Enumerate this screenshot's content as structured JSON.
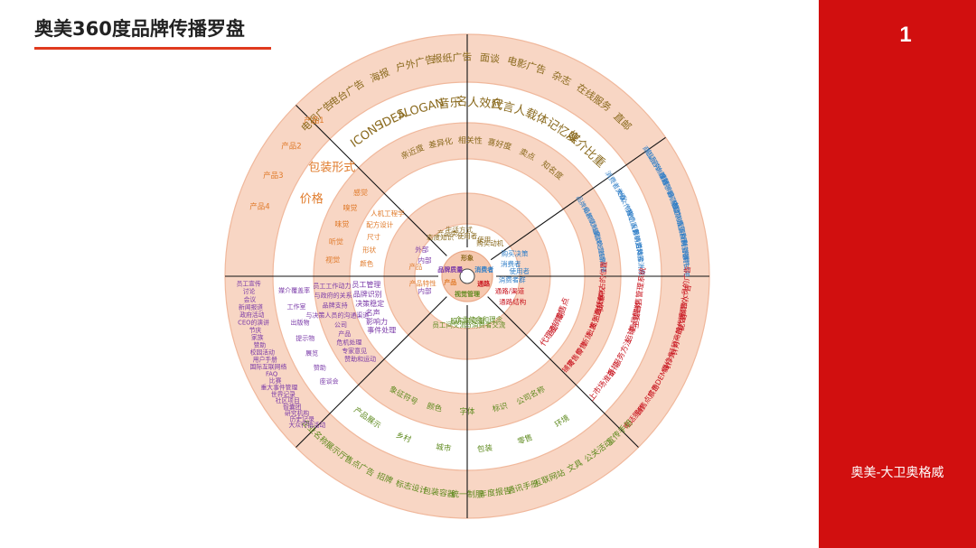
{
  "slide": {
    "title": "奥美360度品牌传播罗盘",
    "page_number": "1",
    "footer": "奥美-大卫奥格威"
  },
  "colors": {
    "peach": "#f7d4c2",
    "accent_red": "#e03a1e",
    "brown": "#8a6a1e",
    "blue": "#2f7ec7",
    "purple": "#7a3aa8",
    "red": "#c8141e",
    "orange": "#e07a2a",
    "green": "#5e8a1e",
    "panel": "#d10f0f"
  },
  "compass": {
    "hub": [
      {
        "text": "形象",
        "color": "brown"
      },
      {
        "text": "消费者",
        "color": "blue"
      },
      {
        "text": "通路",
        "color": "red"
      },
      {
        "text": "视觉管理",
        "color": "green"
      },
      {
        "text": "产品",
        "color": "orange"
      },
      {
        "text": "品牌质量",
        "color": "purple"
      }
    ],
    "center_ring": [
      {
        "text": "使用者",
        "color": "brown"
      },
      {
        "text": "产品类",
        "color": "brown"
      },
      {
        "text": "使用",
        "color": "brown"
      },
      {
        "text": "生活方式",
        "color": "brown"
      },
      {
        "text": "购买动机",
        "color": "brown"
      },
      {
        "text": "态度知识",
        "color": "brown"
      },
      {
        "text": "企业使命和理念",
        "color": "green"
      },
      {
        "text": "员工间交流",
        "color": "green"
      },
      {
        "text": "股东间交流",
        "color": "green"
      },
      {
        "text": "与消费者交流",
        "color": "green"
      },
      {
        "text": "消费者",
        "color": "blue"
      },
      {
        "text": "使用者",
        "color": "blue"
      },
      {
        "text": "消费者群",
        "color": "blue"
      },
      {
        "text": "购买决策",
        "color": "blue"
      },
      {
        "text": "通路/渠道",
        "color": "red"
      },
      {
        "text": "通路结构",
        "color": "red"
      },
      {
        "text": "产品特性",
        "color": "orange"
      },
      {
        "text": "产品",
        "color": "orange"
      },
      {
        "text": "内部",
        "color": "purple"
      },
      {
        "text": "外部",
        "color": "purple"
      },
      {
        "text": "内部",
        "color": "purple"
      }
    ],
    "north": {
      "outer": [
        "电视广告",
        "电台广告",
        "海报",
        "户外广告",
        "报纸广告",
        "面谈",
        "电影广告",
        "杂志",
        "在线服务",
        "直邮"
      ],
      "mid": [
        "ICONS",
        "IDEA",
        "SLOGAN",
        "音乐",
        "名人效应",
        "代言人",
        "载体",
        "记忆度",
        "媒介比重"
      ],
      "inner": [
        "亲近度",
        "差异化",
        "相关性",
        "喜好度",
        "卖点",
        "知名度"
      ]
    },
    "northeast": {
      "outer": [
        "商品服务",
        "电话咨询服务",
        "小赠品",
        "赠送手册",
        "消费购买奖励",
        "会员推广",
        "电话联系",
        "相对样品/手册",
        "直销样刊",
        "互联网营销",
        "特别事件",
        "免费试用"
      ],
      "mid": [
        "消费者关系",
        "大众",
        "大众传媒",
        "个人",
        "售后服务",
        "个人影响力",
        "营销活动",
        "资料库",
        "体验消费"
      ],
      "inner": [
        "品牌知名度",
        "品牌认知度",
        "价值信赖",
        "品牌忠诚度",
        "营销传播"
      ]
    },
    "east": {
      "outer": [
        "配合销售人员的广告",
        "针对一般代理商的广告",
        "针对经销商的广告",
        "保修卡",
        "展示DEMO",
        "销售点广告",
        "电话服务"
      ],
      "mid": [
        "主要销售管理系统",
        "售后服务",
        "运输",
        "服务方法",
        "折扣",
        "上市场准备"
      ],
      "inner": [
        "商场中占的位置",
        "所有权",
        "生意伙伴",
        "陈列面",
        "批发",
        "断货",
        "零售",
        "零售价",
        "铺货"
      ],
      "deep": [
        "零售点",
        "经销商",
        "代理商"
      ]
    },
    "south": {
      "outer": [
        "宣传手册",
        "公关活动",
        "文具",
        "互联网站",
        "通讯手册",
        "年度报告",
        "统一制服",
        "包装容器",
        "标志设计",
        "招牌",
        "售点广告",
        "展示厅",
        "企业名称"
      ],
      "mid": [
        "环境",
        "零售",
        "包装",
        "城市",
        "乡村",
        "产品展示"
      ],
      "inner": [
        "公司名称",
        "标识",
        "字体",
        "颜色",
        "象征符号"
      ]
    },
    "west": {
      "outer": [
        "产品4",
        "产品3",
        "产品2",
        "产品1"
      ],
      "mid": [
        "价格",
        "包装形式"
      ],
      "inner": [
        "视觉",
        "听觉",
        "味觉",
        "嗅觉",
        "感觉"
      ],
      "deep": [
        "颜色",
        "形状",
        "尺寸",
        "配方设计",
        "人机工程学"
      ]
    },
    "southwest": {
      "outer": [
        "大众行销活动",
        "历史记录",
        "研究机构",
        "智囊团",
        "社区项目",
        "世界记录",
        "重大事件管理",
        "比赛",
        "FAQ",
        "国际互联网络",
        "用户手册",
        "校园活动",
        "赞助",
        "家族",
        "节庆",
        "CEO的演讲",
        "政府活动",
        "新闻报道",
        "会议",
        "讨论",
        "员工宣传"
      ],
      "mid": [
        "座谈会",
        "赞助",
        "展览",
        "提示物",
        "出版物",
        "工作室",
        "媒介覆盖率"
      ],
      "inner": [
        "赞助和运动",
        "专家意见",
        "危机处理",
        "产品",
        "公司",
        "与决策人员的沟通渠道",
        "品牌支持",
        "与政府的关系",
        "员工工作动力"
      ],
      "deep": [
        "事件处理",
        "影响力",
        "名声",
        "决策稳定",
        "品牌识别",
        "员工管理"
      ]
    }
  }
}
